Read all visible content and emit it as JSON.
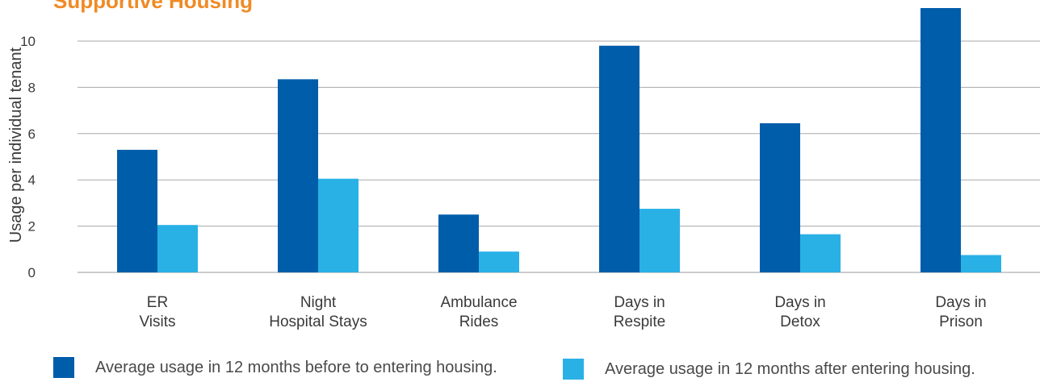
{
  "chart_data": {
    "type": "bar",
    "title": "Supportive Housing",
    "xlabel": "",
    "ylabel": "Usage per individual tenant",
    "ylim": [
      0,
      11.5
    ],
    "yticks": [
      0,
      2,
      4,
      6,
      8,
      10
    ],
    "grid": true,
    "categories": [
      [
        "ER",
        "Visits"
      ],
      [
        "Night",
        "Hospital Stays"
      ],
      [
        "Ambulance",
        "Rides"
      ],
      [
        "Days in",
        "Respite"
      ],
      [
        "Days in",
        "Detox"
      ],
      [
        "Days in",
        "Prison"
      ]
    ],
    "series": [
      {
        "name": "Average usage in 12 months before to entering housing.",
        "color": "#005daa",
        "values": [
          5.3,
          8.35,
          2.5,
          9.8,
          6.45,
          11.5
        ]
      },
      {
        "name": "Average usage in 12 months after entering housing.",
        "color": "#29b1e6",
        "values": [
          2.05,
          4.05,
          0.9,
          2.75,
          1.65,
          0.75
        ]
      }
    ],
    "legend_position": "bottom"
  }
}
